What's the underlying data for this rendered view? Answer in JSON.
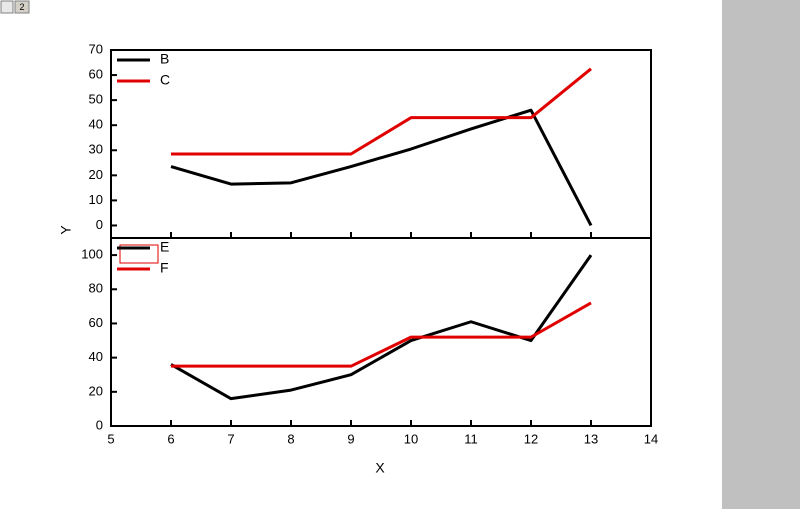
{
  "window_tab": "2",
  "chart_data": [
    {
      "type": "line",
      "ylabel": "Y",
      "x": [
        6,
        7,
        8,
        9,
        10,
        11,
        12,
        13
      ],
      "series": [
        {
          "name": "B",
          "color": "#000000",
          "values": [
            23.5,
            16.5,
            17,
            23.5,
            30.5,
            38.5,
            46,
            0
          ]
        },
        {
          "name": "C",
          "color": "#e00000",
          "values": [
            28.5,
            28.5,
            28.5,
            28.5,
            43,
            43,
            43,
            62.5
          ]
        }
      ],
      "xlim": [
        5,
        14
      ],
      "xticks": [
        5,
        6,
        7,
        8,
        9,
        10,
        11,
        12,
        13,
        14
      ],
      "ylim": [
        -5,
        70
      ],
      "yticks": [
        0,
        10,
        20,
        30,
        40,
        50,
        60,
        70
      ],
      "legend": "upper left"
    },
    {
      "type": "line",
      "xlabel": "X",
      "x": [
        6,
        7,
        8,
        9,
        10,
        11,
        12,
        13
      ],
      "series": [
        {
          "name": "E",
          "color": "#000000",
          "values": [
            36,
            16,
            21,
            30,
            50,
            61,
            50,
            100
          ]
        },
        {
          "name": "F",
          "color": "#e00000",
          "values": [
            35,
            35,
            35,
            35,
            52,
            52,
            52,
            72
          ]
        }
      ],
      "xlim": [
        5,
        14
      ],
      "xticks": [
        5,
        6,
        7,
        8,
        9,
        10,
        11,
        12,
        13,
        14
      ],
      "ylim": [
        0,
        110
      ],
      "yticks": [
        0,
        20,
        40,
        60,
        80,
        100
      ],
      "legend": "upper left"
    }
  ]
}
